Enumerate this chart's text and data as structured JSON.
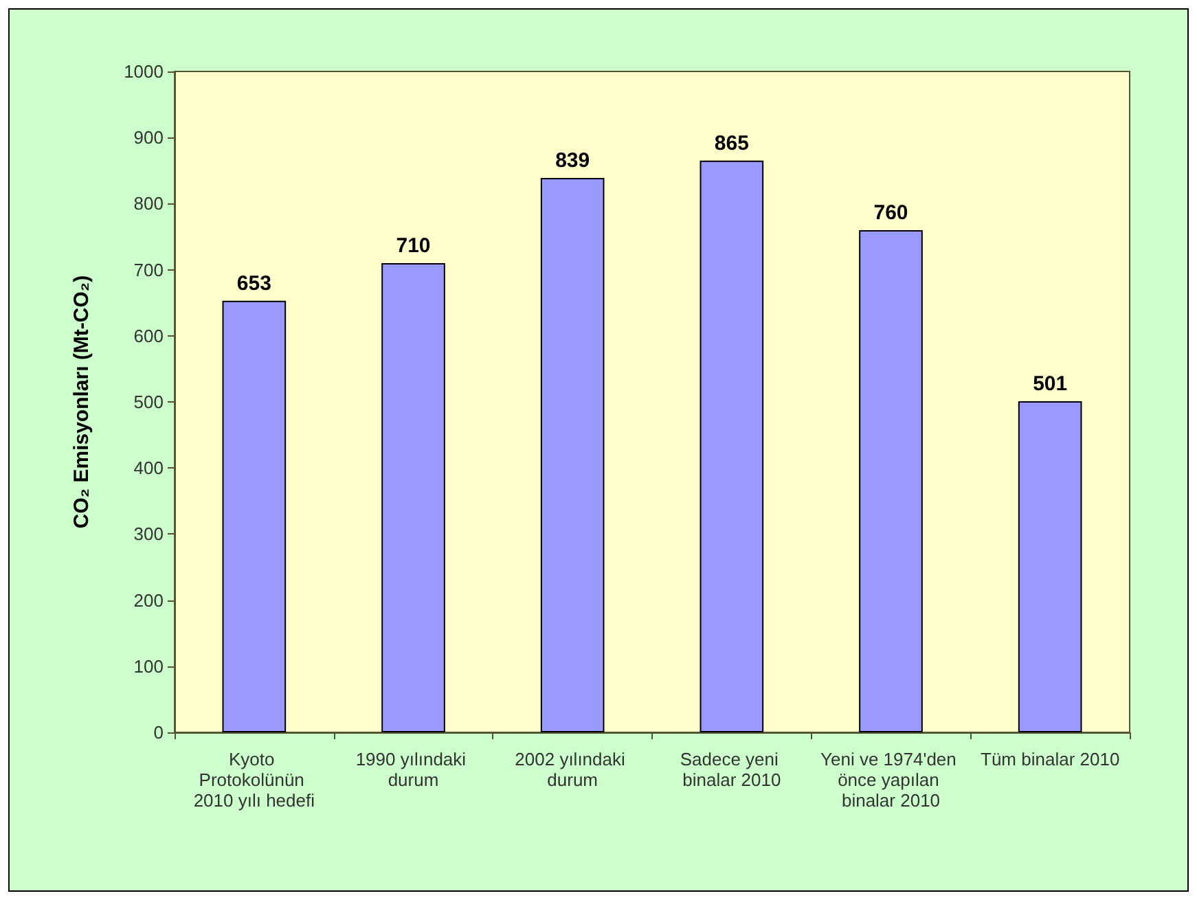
{
  "chart_data": {
    "type": "bar",
    "ylabel": "CO₂ Emisyonları (Mt-CO₂)",
    "categories": [
      "Kyoto Protokolünün 2010 yılı hedefi",
      "1990 yılındaki durum",
      "2002 yılındaki durum",
      "Sadece yeni binalar 2010",
      "Yeni ve 1974'den önce yapılan binalar 2010",
      "Tüm binalar 2010"
    ],
    "values": [
      653,
      710,
      839,
      865,
      760,
      501
    ],
    "color": "#9999ff",
    "ylim": [
      0,
      1000
    ],
    "yticks": [
      0,
      100,
      200,
      300,
      400,
      500,
      600,
      700,
      800,
      900,
      1000
    ],
    "grid": false,
    "data_labels": true
  }
}
